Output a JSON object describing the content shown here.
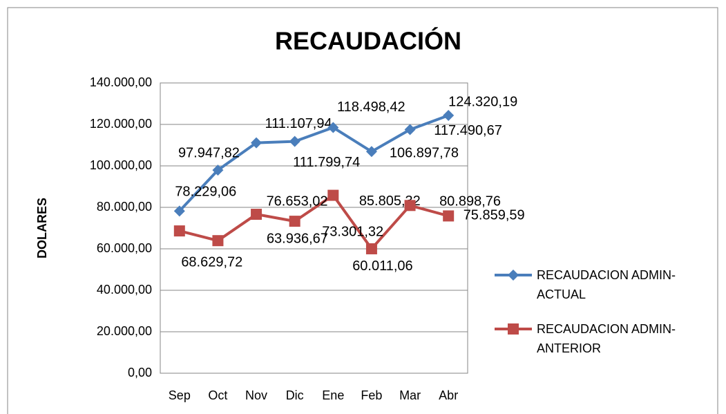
{
  "chart_data": {
    "type": "line",
    "title": "RECAUDACIÓN",
    "y_label": "DOLARES",
    "categories": [
      "Sep",
      "Oct",
      "Nov",
      "Dic",
      "Ene",
      "Feb",
      "Mar",
      "Abr"
    ],
    "series": [
      {
        "name": "RECAUDACION ADMIN-ACTUAL",
        "color": "#4a7ebb",
        "marker": "diamond",
        "values": [
          78229.06,
          97947.82,
          111107.94,
          111799.74,
          118498.42,
          106897.78,
          117490.67,
          124320.19
        ],
        "value_labels": [
          "78.229,06",
          "97.947,82",
          "111.107,94",
          "111.799,74",
          "118.498,42",
          "106.897,78",
          "117.490,67",
          "124.320,19"
        ]
      },
      {
        "name": "RECAUDACION ADMIN-ANTERIOR",
        "color": "#be4b48",
        "marker": "square",
        "values": [
          68629.72,
          63936.67,
          76653.02,
          73301.32,
          85805.32,
          60011.06,
          80898.76,
          75859.59
        ],
        "value_labels": [
          "68.629,72",
          "63.936,67",
          "76.653,02",
          "73.301,32",
          "85.805,32",
          "60.011,06",
          "80.898,76",
          "75.859,59"
        ]
      }
    ],
    "ylim": [
      0,
      140000
    ],
    "yticks": [
      {
        "value": 0,
        "label": "0,00"
      },
      {
        "value": 20000,
        "label": "20.000,00"
      },
      {
        "value": 40000,
        "label": "40.000,00"
      },
      {
        "value": 60000,
        "label": "60.000,00"
      },
      {
        "value": 80000,
        "label": "80.000,00"
      },
      {
        "value": 100000,
        "label": "100.000,00"
      },
      {
        "value": 120000,
        "label": "120.000,00"
      },
      {
        "value": 140000,
        "label": "140.000,00"
      }
    ],
    "grid": true,
    "legend": "right"
  }
}
